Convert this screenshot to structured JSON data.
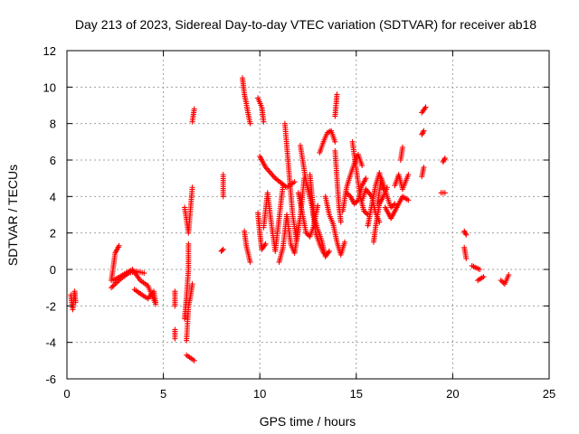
{
  "chart_data": {
    "type": "scatter",
    "title": "Day 213 of 2023, Sidereal Day-to-day VTEC variation (SDTVAR) for receiver ab18",
    "xlabel": "GPS time / hours",
    "ylabel": "SDTVAR / TECUs",
    "xlim": [
      0,
      25
    ],
    "ylim": [
      -6,
      12
    ],
    "x_ticks": [
      0,
      5,
      10,
      15,
      20,
      25
    ],
    "y_ticks": [
      -6,
      -4,
      -2,
      0,
      2,
      4,
      6,
      8,
      10,
      12
    ],
    "grid": true,
    "marker": "+",
    "series": [
      {
        "name": "SDTVAR",
        "color": "#ff0000",
        "segments": [
          [
            [
              0.2,
              -1.4
            ],
            [
              0.3,
              -2.2
            ],
            [
              0.4,
              -1.2
            ],
            [
              0.45,
              -1.8
            ]
          ],
          [
            [
              2.3,
              -0.6
            ],
            [
              2.4,
              0.1
            ],
            [
              2.5,
              0.9
            ],
            [
              2.7,
              1.3
            ]
          ],
          [
            [
              2.3,
              -1.0
            ],
            [
              2.8,
              -0.5
            ],
            [
              3.2,
              -0.2
            ],
            [
              3.6,
              -0.1
            ],
            [
              4.0,
              -0.2
            ]
          ],
          [
            [
              2.4,
              -0.6
            ],
            [
              2.9,
              -0.3
            ],
            [
              3.4,
              0.0
            ],
            [
              3.8,
              -0.6
            ],
            [
              4.2,
              -0.9
            ],
            [
              4.6,
              -1.9
            ]
          ],
          [
            [
              3.5,
              -1.1
            ],
            [
              3.9,
              -1.4
            ],
            [
              4.2,
              -1.6
            ],
            [
              4.5,
              -1.2
            ],
            [
              4.6,
              -1.8
            ]
          ],
          [
            [
              5.6,
              -1.2
            ],
            [
              5.6,
              -2.0
            ]
          ],
          [
            [
              5.6,
              -3.3
            ],
            [
              5.6,
              -3.8
            ]
          ],
          [
            [
              6.1,
              -2.7
            ],
            [
              6.2,
              -1.5
            ],
            [
              6.3,
              0.0
            ],
            [
              6.3,
              1.4
            ]
          ],
          [
            [
              6.1,
              3.4
            ],
            [
              6.3,
              2.0
            ],
            [
              6.5,
              4.5
            ]
          ],
          [
            [
              6.2,
              -3.9
            ],
            [
              6.3,
              -2.0
            ],
            [
              6.4,
              -1.5
            ],
            [
              6.5,
              -0.8
            ]
          ],
          [
            [
              6.2,
              -4.7
            ],
            [
              6.6,
              -5.0
            ]
          ],
          [
            [
              6.5,
              8.1
            ],
            [
              6.6,
              8.8
            ]
          ],
          [
            [
              8.1,
              4.0
            ],
            [
              8.1,
              5.2
            ]
          ],
          [
            [
              8.0,
              1.0
            ],
            [
              8.1,
              1.1
            ]
          ],
          [
            [
              9.2,
              2.1
            ],
            [
              9.3,
              1.3
            ],
            [
              9.5,
              0.4
            ]
          ],
          [
            [
              9.1,
              10.5
            ],
            [
              9.2,
              9.6
            ],
            [
              9.3,
              9.1
            ],
            [
              9.4,
              8.5
            ],
            [
              9.5,
              8.0
            ]
          ],
          [
            [
              9.9,
              9.4
            ],
            [
              10.1,
              8.9
            ],
            [
              10.2,
              8.1
            ]
          ],
          [
            [
              9.9,
              3.1
            ],
            [
              10.0,
              2.0
            ],
            [
              10.1,
              1.1
            ],
            [
              10.3,
              1.4
            ]
          ],
          [
            [
              10.0,
              6.2
            ],
            [
              10.3,
              5.6
            ],
            [
              10.8,
              5.0
            ],
            [
              11.4,
              4.5
            ],
            [
              11.8,
              4.8
            ]
          ],
          [
            [
              10.2,
              2.3
            ],
            [
              10.4,
              4.2
            ],
            [
              10.6,
              2.5
            ],
            [
              10.8,
              1.0
            ],
            [
              11.0,
              2.8
            ],
            [
              11.2,
              4.6
            ]
          ],
          [
            [
              11.0,
              0.4
            ],
            [
              11.2,
              1.2
            ],
            [
              11.4,
              3.0
            ],
            [
              11.6,
              1.4
            ],
            [
              11.8,
              0.9
            ],
            [
              12.0,
              2.2
            ]
          ],
          [
            [
              11.3,
              8.0
            ],
            [
              11.5,
              5.5
            ],
            [
              11.7,
              3.0
            ],
            [
              11.9,
              1.6
            ],
            [
              12.1,
              2.9
            ],
            [
              12.3,
              5.0
            ]
          ],
          [
            [
              12.0,
              4.2
            ],
            [
              12.2,
              3.1
            ],
            [
              12.4,
              2.0
            ],
            [
              12.6,
              1.8
            ],
            [
              12.8,
              2.4
            ],
            [
              13.0,
              3.5
            ]
          ],
          [
            [
              12.1,
              6.8
            ],
            [
              12.4,
              4.8
            ],
            [
              12.7,
              3.5
            ],
            [
              12.9,
              2.0
            ],
            [
              13.1,
              1.4
            ],
            [
              13.3,
              0.9
            ]
          ],
          [
            [
              12.6,
              5.2
            ],
            [
              12.8,
              3.0
            ],
            [
              13.0,
              2.2
            ],
            [
              13.2,
              1.6
            ],
            [
              13.4,
              0.7
            ],
            [
              13.6,
              1.0
            ]
          ],
          [
            [
              13.1,
              6.4
            ],
            [
              13.3,
              7.0
            ],
            [
              13.5,
              7.5
            ],
            [
              13.7,
              7.6
            ],
            [
              13.9,
              7.0
            ]
          ],
          [
            [
              13.4,
              4.0
            ],
            [
              13.6,
              3.0
            ],
            [
              13.8,
              2.5
            ],
            [
              14.0,
              1.5
            ],
            [
              14.2,
              0.8
            ],
            [
              14.4,
              1.5
            ]
          ],
          [
            [
              13.9,
              6.5
            ],
            [
              14.0,
              5.0
            ],
            [
              14.1,
              3.5
            ],
            [
              14.2,
              2.6
            ]
          ],
          [
            [
              14.0,
              9.6
            ],
            [
              13.9,
              8.4
            ]
          ],
          [
            [
              14.3,
              3.2
            ],
            [
              14.5,
              4.5
            ],
            [
              14.7,
              5.2
            ],
            [
              14.9,
              5.8
            ],
            [
              15.1,
              6.3
            ],
            [
              15.3,
              5.7
            ]
          ],
          [
            [
              14.5,
              4.2
            ],
            [
              14.7,
              4.0
            ],
            [
              14.9,
              3.6
            ],
            [
              15.1,
              3.8
            ],
            [
              15.3,
              4.6
            ],
            [
              15.5,
              5.0
            ]
          ],
          [
            [
              14.8,
              7.0
            ],
            [
              15.0,
              5.5
            ],
            [
              15.2,
              4.0
            ],
            [
              15.4,
              3.2
            ],
            [
              15.6,
              3.0
            ]
          ],
          [
            [
              15.3,
              3.8
            ],
            [
              15.5,
              4.4
            ],
            [
              15.8,
              4.0
            ],
            [
              16.0,
              3.1
            ],
            [
              16.2,
              2.6
            ]
          ],
          [
            [
              15.6,
              2.4
            ],
            [
              15.8,
              3.5
            ],
            [
              16.0,
              4.6
            ],
            [
              16.2,
              5.3
            ],
            [
              16.4,
              4.4
            ]
          ],
          [
            [
              15.9,
              1.5
            ],
            [
              16.0,
              2.3
            ],
            [
              16.2,
              3.6
            ],
            [
              16.4,
              4.0
            ],
            [
              16.6,
              4.5
            ]
          ],
          [
            [
              16.1,
              3.6
            ],
            [
              16.3,
              5.0
            ],
            [
              16.6,
              4.0
            ],
            [
              16.8,
              3.4
            ],
            [
              17.0,
              3.6
            ]
          ],
          [
            [
              16.5,
              3.4
            ],
            [
              16.8,
              2.8
            ],
            [
              17.1,
              3.4
            ],
            [
              17.4,
              4.0
            ],
            [
              17.7,
              3.8
            ]
          ],
          [
            [
              17.0,
              4.6
            ],
            [
              17.2,
              5.2
            ],
            [
              17.4,
              4.4
            ],
            [
              17.7,
              5.2
            ]
          ],
          [
            [
              17.3,
              6.0
            ],
            [
              17.4,
              6.7
            ]
          ],
          [
            [
              18.4,
              5.1
            ],
            [
              18.5,
              5.6
            ]
          ],
          [
            [
              18.4,
              7.4
            ],
            [
              18.5,
              7.6
            ]
          ],
          [
            [
              18.4,
              8.6
            ],
            [
              18.6,
              8.9
            ]
          ],
          [
            [
              19.4,
              4.2
            ],
            [
              19.6,
              4.2
            ]
          ],
          [
            [
              19.5,
              5.9
            ],
            [
              19.6,
              6.1
            ]
          ],
          [
            [
              20.6,
              2.1
            ],
            [
              20.7,
              1.9
            ]
          ],
          [
            [
              20.6,
              1.2
            ],
            [
              20.7,
              0.6
            ]
          ],
          [
            [
              21.0,
              0.2
            ],
            [
              21.4,
              0.0
            ]
          ],
          [
            [
              21.3,
              -0.6
            ],
            [
              21.6,
              -0.4
            ]
          ],
          [
            [
              22.5,
              -0.6
            ],
            [
              22.7,
              -0.8
            ],
            [
              22.9,
              -0.3
            ]
          ]
        ]
      }
    ]
  }
}
